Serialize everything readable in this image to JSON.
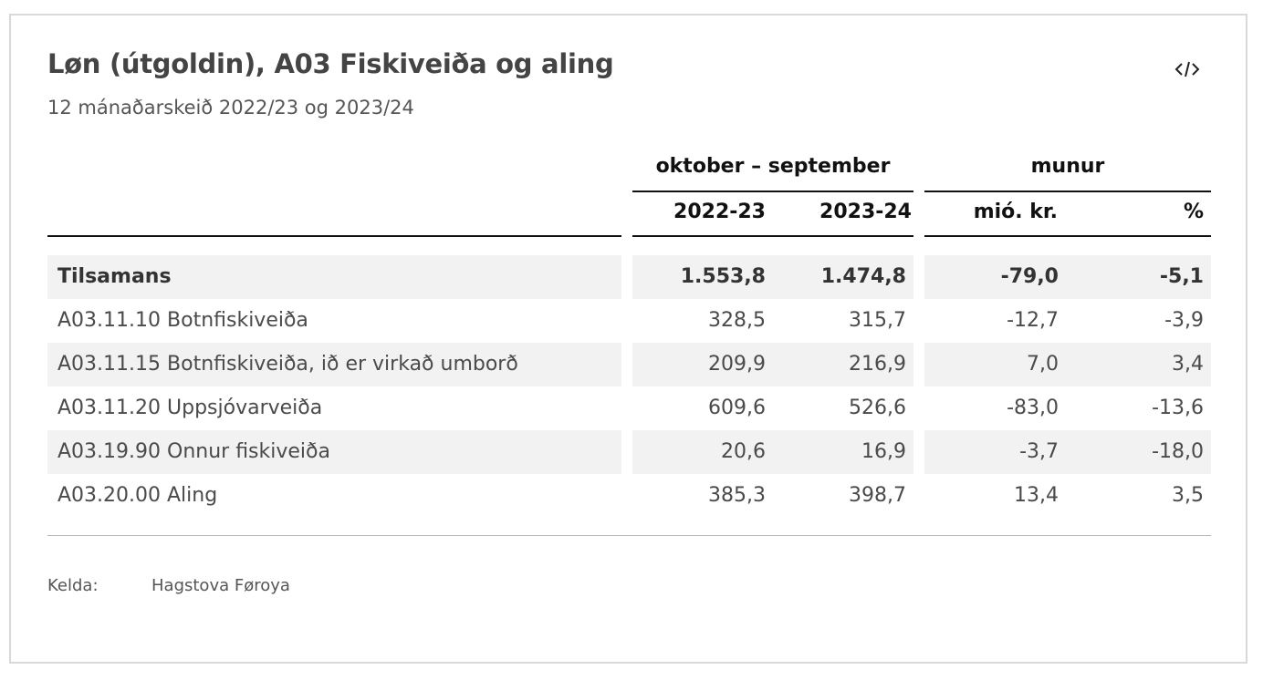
{
  "title": "Løn (útgoldin), A03 Fiskiveiða og aling",
  "subtitle": "12 mánaðarskeið 2022/23 og 2023/24",
  "embed_icon": "code-embed-icon",
  "chart_data": {
    "type": "table",
    "title": "Løn (útgoldin), A03 Fiskiveiða og aling",
    "subtitle": "12 mánaðarskeið 2022/23 og 2023/24",
    "column_groups": [
      {
        "label": "oktober – september"
      },
      {
        "label": "munur"
      }
    ],
    "columns": [
      "2022-23",
      "2023-24",
      "mió. kr.",
      "%"
    ],
    "rows": [
      {
        "label": "Tilsamans",
        "values": [
          "1.553,8",
          "1.474,8",
          "-79,0",
          "-5,1"
        ],
        "total": true
      },
      {
        "label": "A03.11.10 Botnfiskiveiða",
        "values": [
          "328,5",
          "315,7",
          "-12,7",
          "-3,9"
        ]
      },
      {
        "label": "A03.11.15 Botnfiskiveiða, ið er virkað umborð",
        "values": [
          "209,9",
          "216,9",
          "7,0",
          "3,4"
        ]
      },
      {
        "label": "A03.11.20 Uppsjóvarveiða",
        "values": [
          "609,6",
          "526,6",
          "-83,0",
          "-13,6"
        ]
      },
      {
        "label": "A03.19.90 Onnur fiskiveiða",
        "values": [
          "20,6",
          "16,9",
          "-3,7",
          "-18,0"
        ]
      },
      {
        "label": "A03.20.00 Aling",
        "values": [
          "385,3",
          "398,7",
          "13,4",
          "3,5"
        ]
      }
    ]
  },
  "source": {
    "label": "Kelda:",
    "value": "Hagstova Føroya"
  }
}
